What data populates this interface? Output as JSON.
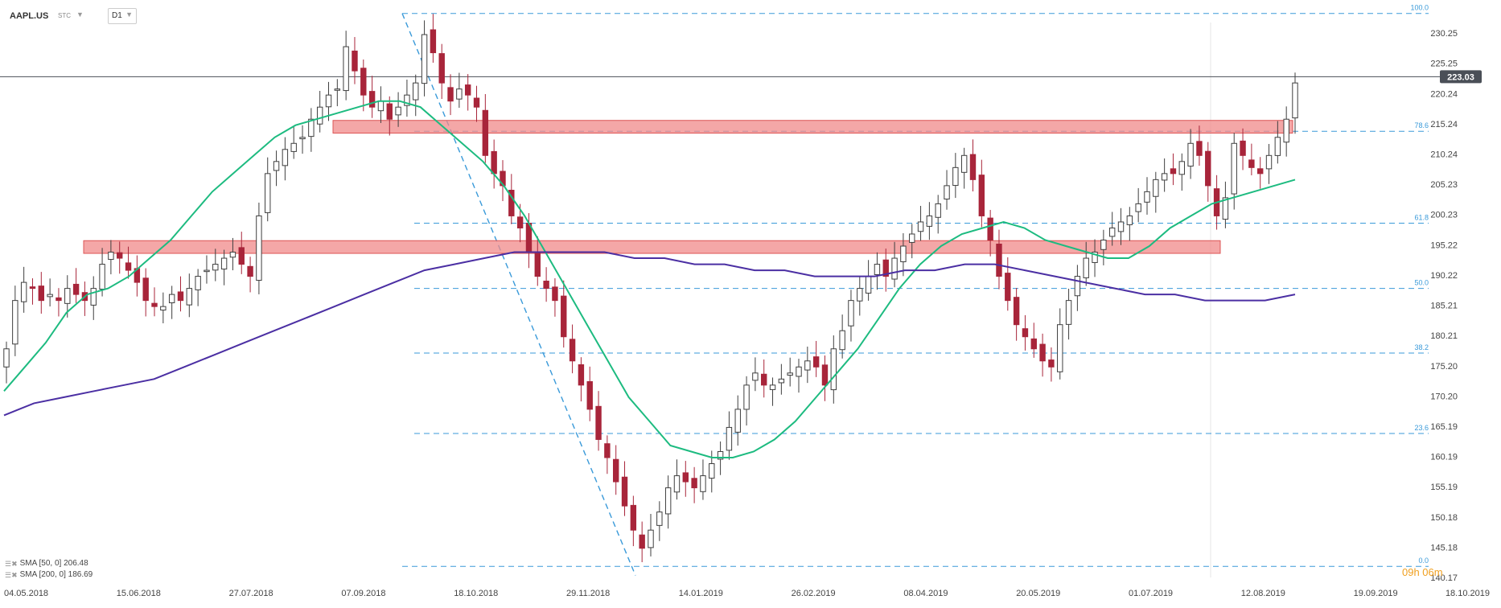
{
  "toolbar": {
    "symbol": "AAPL.US",
    "source": "STC",
    "interval": "D1"
  },
  "legend": {
    "sma50": "SMA [50, 0] 206.48",
    "sma200": "SMA [200, 0] 186.69"
  },
  "countdown": "09h 06m",
  "current_price": "223.03",
  "colors": {
    "bull": "#3f3f3f",
    "bear": "#a8253a",
    "sma50": "#1dbb80",
    "sma200": "#4b2fa3",
    "zone": "#f08a8a",
    "fib": "#3a9ad9",
    "price_tag": "#4a4f57",
    "clock": "#f0a020"
  },
  "chart_data": {
    "type": "candlestick",
    "y_range": [
      140.17,
      232
    ],
    "y_ticks": [
      "230.25",
      "225.25",
      "220.24",
      "215.24",
      "210.24",
      "205.23",
      "200.23",
      "195.22",
      "190.22",
      "185.21",
      "180.21",
      "175.20",
      "170.20",
      "165.19",
      "160.19",
      "155.19",
      "150.18",
      "145.18",
      "140.17"
    ],
    "x_labels": [
      "04.05.2018",
      "15.06.2018",
      "27.07.2018",
      "07.09.2018",
      "18.10.2018",
      "29.11.2018",
      "14.01.2019",
      "26.02.2019",
      "08.04.2019",
      "20.05.2019",
      "01.07.2019",
      "12.08.2019",
      "19.09.2019",
      "18.10.2019"
    ],
    "fib_levels": [
      {
        "label": "100.0",
        "value": 233.5
      },
      {
        "label": "78.6",
        "value": 214.0
      },
      {
        "label": "61.8",
        "value": 198.8
      },
      {
        "label": "50.0",
        "value": 188.0
      },
      {
        "label": "38.2",
        "value": 177.3
      },
      {
        "label": "23.6",
        "value": 164.0
      },
      {
        "label": "0.0",
        "value": 142.0
      }
    ],
    "resistance_zones": [
      {
        "low": 213.7,
        "high": 215.8
      },
      {
        "low": 193.8,
        "high": 195.9
      }
    ],
    "current_price": 223.03,
    "swing_high": {
      "date_index": 35,
      "value": 233.5
    },
    "swing_low": {
      "date_index": 55,
      "value": 142.0
    },
    "closes": [
      178,
      186,
      189,
      188,
      186,
      187,
      186,
      188,
      187,
      186,
      188,
      192,
      194,
      193,
      191,
      189,
      186,
      185,
      185,
      187,
      186,
      188,
      190,
      191,
      192,
      193,
      194,
      192,
      190,
      200,
      207,
      209,
      211,
      212,
      213,
      216,
      218,
      220,
      221,
      228,
      224,
      220,
      218,
      219,
      216,
      218,
      220,
      222,
      230,
      227,
      222,
      219,
      221,
      220,
      218,
      210,
      207,
      205,
      200,
      198,
      194,
      190,
      188,
      186,
      180,
      176,
      172,
      168,
      163,
      160,
      156,
      152,
      148,
      145,
      148,
      151,
      155,
      157,
      156,
      155,
      157,
      159,
      161,
      165,
      168,
      172,
      174,
      172,
      172,
      173,
      174,
      175,
      176,
      175,
      172,
      178,
      181,
      186,
      188,
      190,
      192,
      190,
      193,
      195,
      197,
      199,
      200,
      202,
      205,
      208,
      210,
      206,
      200,
      196,
      190,
      186,
      182,
      180,
      178,
      176,
      175,
      182,
      186,
      190,
      193,
      194,
      196,
      198,
      199,
      200,
      202,
      204,
      206,
      207,
      207,
      209,
      212,
      210,
      205,
      200,
      203,
      212,
      210,
      208,
      207,
      210,
      213,
      216,
      222
    ],
    "sma50": [
      171,
      175,
      179,
      184,
      187,
      188,
      190,
      193,
      196,
      200,
      204,
      207,
      210,
      213,
      215,
      216,
      217,
      218,
      219,
      219,
      218,
      215,
      212,
      209,
      205,
      200,
      194,
      188,
      182,
      176,
      170,
      166,
      162,
      161,
      160,
      160,
      161,
      163,
      166,
      170,
      174,
      178,
      183,
      188,
      192,
      195,
      197,
      198,
      199,
      198,
      196,
      195,
      194,
      193,
      193,
      195,
      198,
      200,
      202,
      203,
      204,
      205,
      206
    ],
    "sma200": [
      167,
      169,
      170,
      171,
      172,
      173,
      175,
      177,
      179,
      181,
      183,
      185,
      187,
      189,
      191,
      192,
      193,
      194,
      194,
      194,
      194,
      193,
      193,
      192,
      192,
      191,
      191,
      190,
      190,
      190,
      191,
      191,
      192,
      192,
      191,
      190,
      189,
      188,
      187,
      187,
      186,
      186,
      186,
      187
    ]
  }
}
